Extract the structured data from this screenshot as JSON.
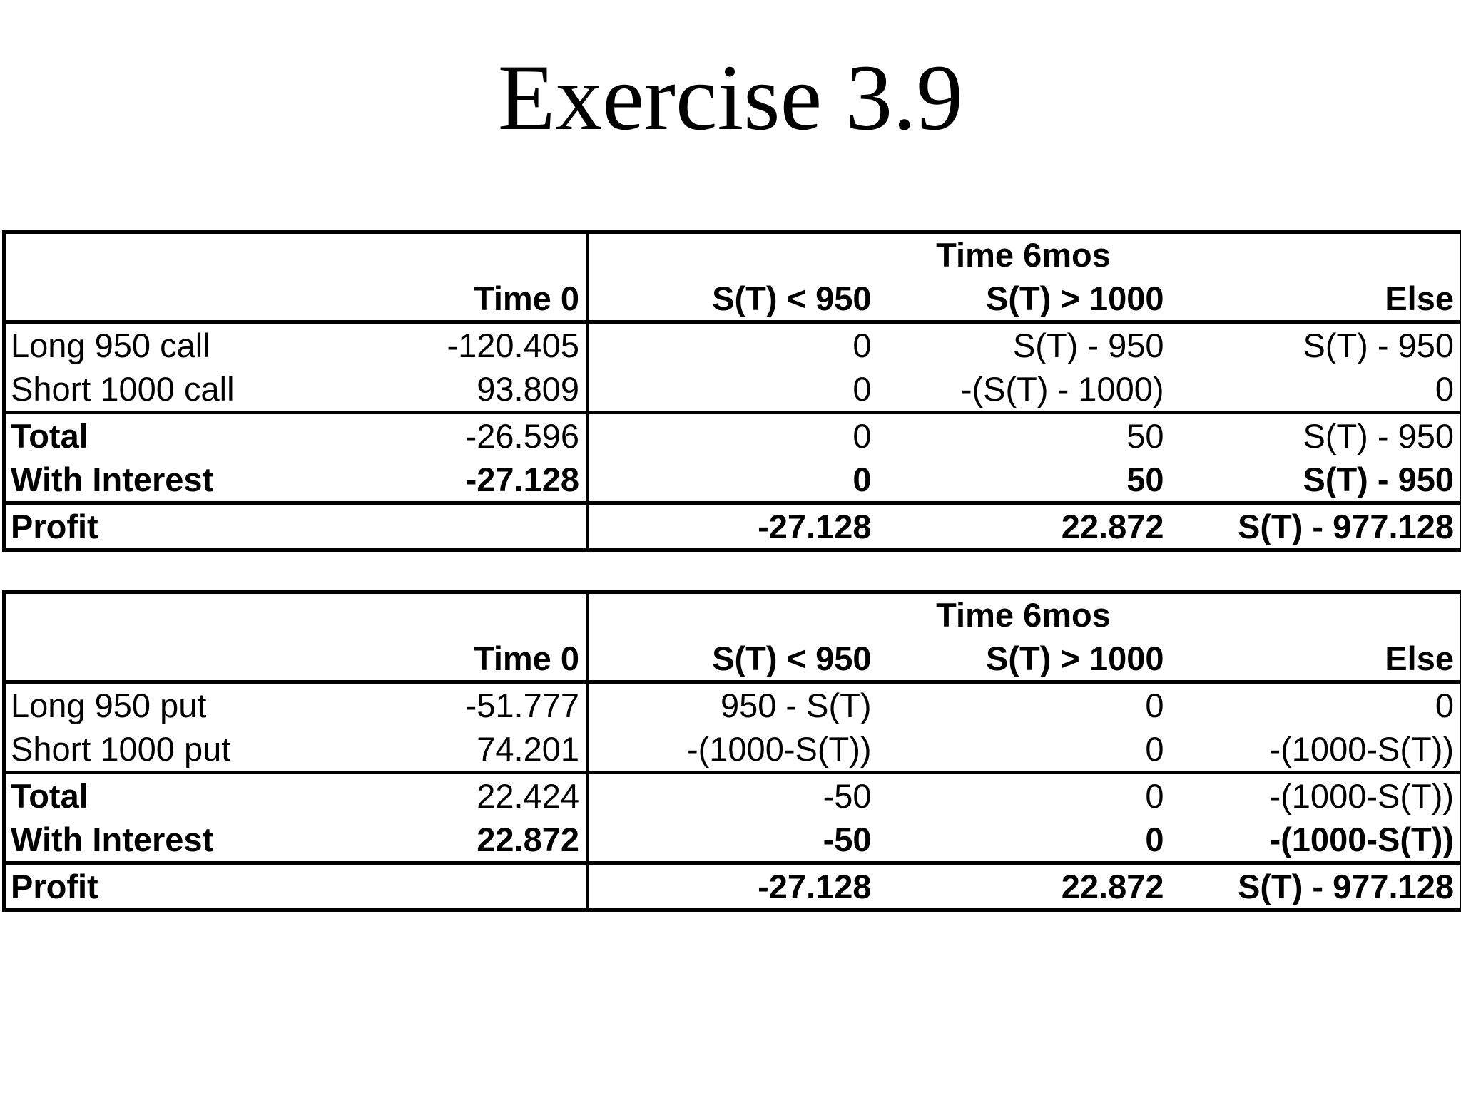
{
  "title": "Exercise 3.9",
  "tables": [
    {
      "group_header": "Time 6mos",
      "columns": [
        "",
        "Time 0",
        "S(T) < 950",
        "S(T) > 1000",
        "Else"
      ],
      "rows": [
        {
          "label": "Long 950 call",
          "time0": "-120.405",
          "lt950": "0",
          "gt1000": "S(T) - 950",
          "else": "S(T) - 950"
        },
        {
          "label": "Short 1000 call",
          "time0": "93.809",
          "lt950": "0",
          "gt1000": "-(S(T) - 1000)",
          "else": "0"
        },
        {
          "label": "Total",
          "time0": "-26.596",
          "lt950": "0",
          "gt1000": "50",
          "else": "S(T) - 950"
        },
        {
          "label": "With Interest",
          "time0": "-27.128",
          "lt950": "0",
          "gt1000": "50",
          "else": "S(T) - 950"
        },
        {
          "label": "Profit",
          "time0": "",
          "lt950": "-27.128",
          "gt1000": "22.872",
          "else": "S(T) - 977.128"
        }
      ]
    },
    {
      "group_header": "Time 6mos",
      "columns": [
        "",
        "Time 0",
        "S(T) < 950",
        "S(T) > 1000",
        "Else"
      ],
      "rows": [
        {
          "label": "Long 950 put",
          "time0": "-51.777",
          "lt950": "950 - S(T)",
          "gt1000": "0",
          "else": "0"
        },
        {
          "label": "Short 1000 put",
          "time0": "74.201",
          "lt950": "-(1000-S(T))",
          "gt1000": "0",
          "else": "-(1000-S(T))"
        },
        {
          "label": "Total",
          "time0": "22.424",
          "lt950": "-50",
          "gt1000": "0",
          "else": "-(1000-S(T))"
        },
        {
          "label": "With Interest",
          "time0": "22.872",
          "lt950": "-50",
          "gt1000": "0",
          "else": "-(1000-S(T))"
        },
        {
          "label": "Profit",
          "time0": "",
          "lt950": "-27.128",
          "gt1000": "22.872",
          "else": "S(T) - 977.128"
        }
      ]
    }
  ]
}
